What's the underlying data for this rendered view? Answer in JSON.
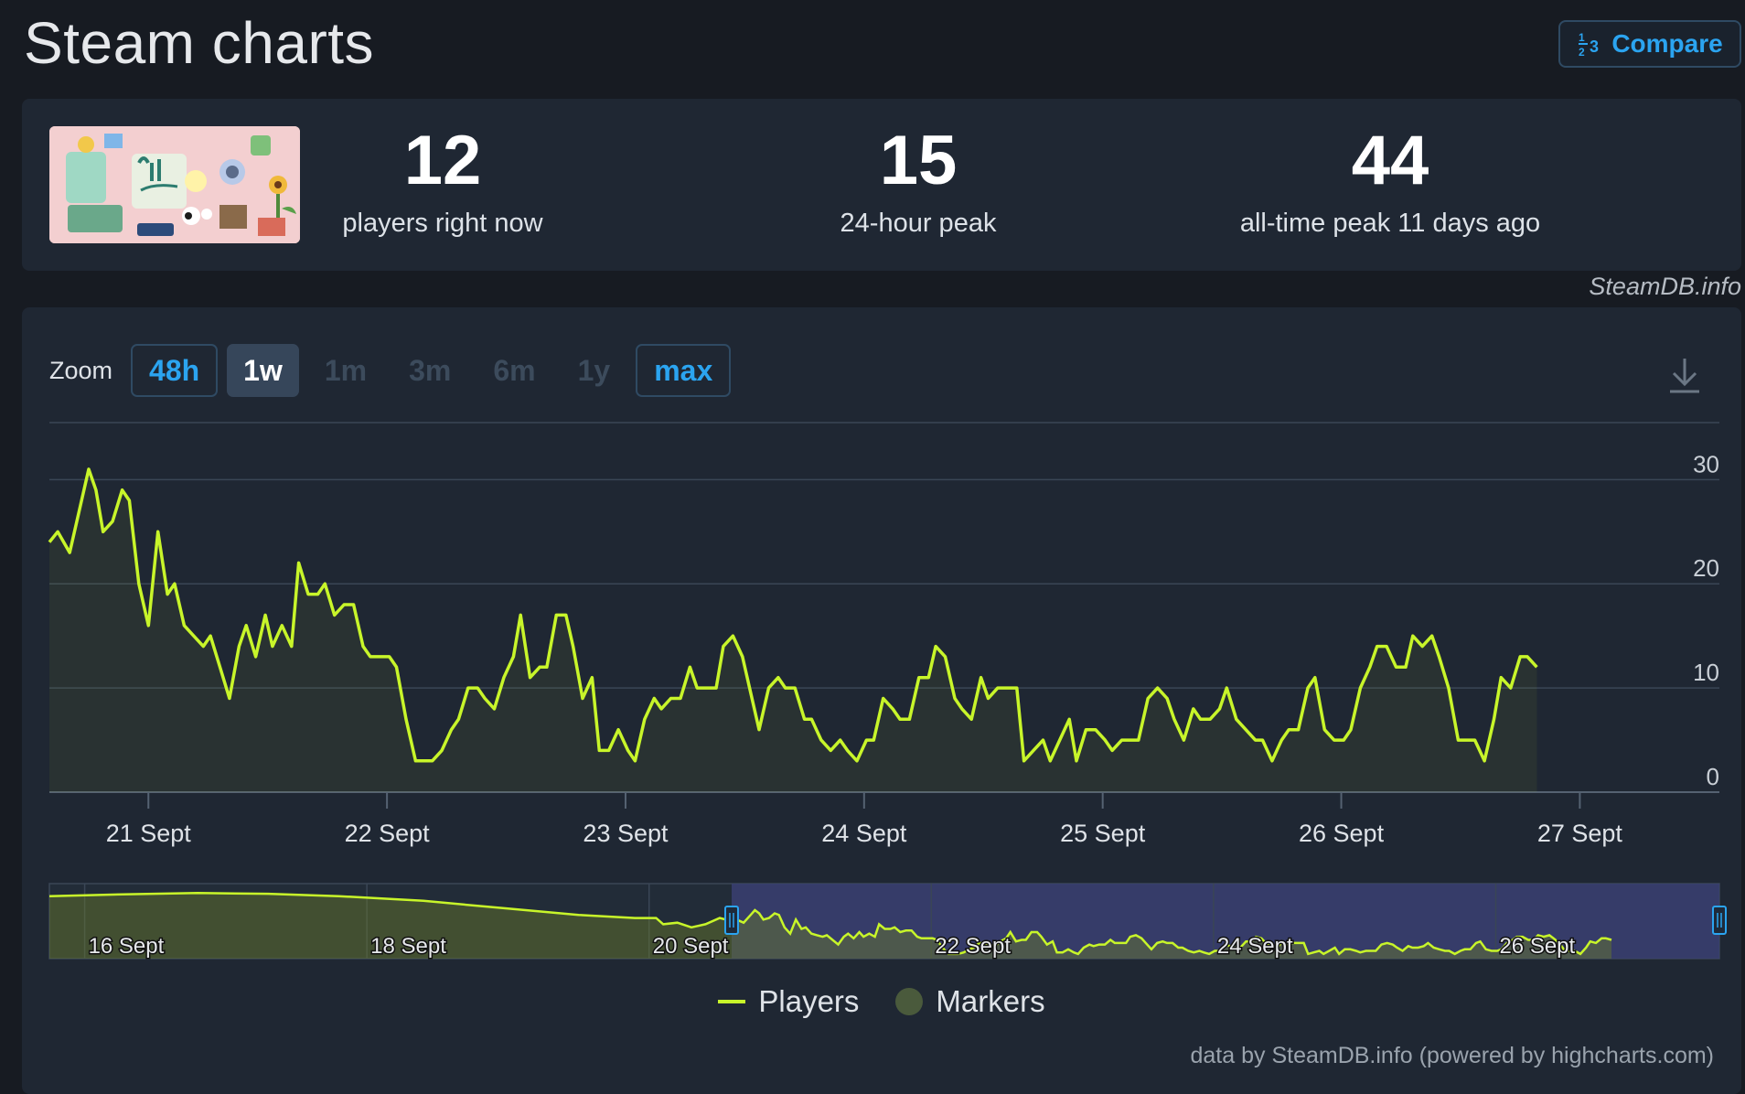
{
  "header": {
    "title": "Steam charts",
    "compare_label": "Compare"
  },
  "stats": {
    "current": {
      "value": "12",
      "label": "players right now"
    },
    "peak24": {
      "value": "15",
      "label": "24-hour peak"
    },
    "alltime": {
      "value": "44",
      "label": "all-time peak 11 days ago"
    }
  },
  "watermark": "SteamDB.info",
  "zoom": {
    "label": "Zoom",
    "options": [
      {
        "label": "48h",
        "state": "outlined"
      },
      {
        "label": "1w",
        "state": "active"
      },
      {
        "label": "1m",
        "state": "disabled"
      },
      {
        "label": "3m",
        "state": "disabled"
      },
      {
        "label": "6m",
        "state": "disabled"
      },
      {
        "label": "1y",
        "state": "disabled"
      },
      {
        "label": "max",
        "state": "outlined"
      }
    ]
  },
  "legend": {
    "players": "Players",
    "markers": "Markers"
  },
  "credits": "data by SteamDB.info (powered by highcharts.com)",
  "colors": {
    "line": "#c8f52a",
    "panel": "#1f2733",
    "navigator_selection": "#3a3f72"
  },
  "chart_data": {
    "type": "line",
    "ylim": [
      0,
      36
    ],
    "yticks": [
      0,
      10,
      20,
      30
    ],
    "grid": true,
    "xticks": [
      {
        "t": 21,
        "label": "21 Sept"
      },
      {
        "t": 22,
        "label": "22 Sept"
      },
      {
        "t": 23,
        "label": "23 Sept"
      },
      {
        "t": 24,
        "label": "24 Sept"
      },
      {
        "t": 25,
        "label": "25 Sept"
      },
      {
        "t": 26,
        "label": "26 Sept"
      },
      {
        "t": 27,
        "label": "27 Sept"
      }
    ],
    "xrange": [
      20.585,
      27.585
    ],
    "series": [
      {
        "name": "Players",
        "points": [
          [
            20.585,
            24
          ],
          [
            20.62,
            25
          ],
          [
            20.67,
            23
          ],
          [
            20.72,
            28
          ],
          [
            20.75,
            31
          ],
          [
            20.78,
            29
          ],
          [
            20.81,
            25
          ],
          [
            20.85,
            26
          ],
          [
            20.89,
            29
          ],
          [
            20.92,
            28
          ],
          [
            20.96,
            20
          ],
          [
            21.0,
            16
          ],
          [
            21.04,
            25
          ],
          [
            21.08,
            19
          ],
          [
            21.11,
            20
          ],
          [
            21.15,
            16
          ],
          [
            21.19,
            15
          ],
          [
            21.23,
            14
          ],
          [
            21.26,
            15
          ],
          [
            21.3,
            12
          ],
          [
            21.34,
            9
          ],
          [
            21.38,
            14
          ],
          [
            21.41,
            16
          ],
          [
            21.45,
            13
          ],
          [
            21.49,
            17
          ],
          [
            21.52,
            14
          ],
          [
            21.56,
            16
          ],
          [
            21.6,
            14
          ],
          [
            21.63,
            22
          ],
          [
            21.67,
            19
          ],
          [
            21.71,
            19
          ],
          [
            21.74,
            20
          ],
          [
            21.78,
            17
          ],
          [
            21.82,
            18
          ],
          [
            21.86,
            18
          ],
          [
            21.9,
            14
          ],
          [
            21.93,
            13
          ],
          [
            21.97,
            13
          ],
          [
            22.01,
            13
          ],
          [
            22.04,
            12
          ],
          [
            22.08,
            7
          ],
          [
            22.12,
            3
          ],
          [
            22.15,
            3
          ],
          [
            22.19,
            3
          ],
          [
            22.23,
            4
          ],
          [
            22.27,
            6
          ],
          [
            22.3,
            7
          ],
          [
            22.34,
            10
          ],
          [
            22.38,
            10
          ],
          [
            22.41,
            9
          ],
          [
            22.45,
            8
          ],
          [
            22.49,
            11
          ],
          [
            22.53,
            13
          ],
          [
            22.56,
            17
          ],
          [
            22.6,
            11
          ],
          [
            22.64,
            12
          ],
          [
            22.67,
            12
          ],
          [
            22.71,
            17
          ],
          [
            22.75,
            17
          ],
          [
            22.78,
            14
          ],
          [
            22.82,
            9
          ],
          [
            22.86,
            11
          ],
          [
            22.89,
            4
          ],
          [
            22.93,
            4
          ],
          [
            22.97,
            6
          ],
          [
            23.01,
            4
          ],
          [
            23.04,
            3
          ],
          [
            23.08,
            7
          ],
          [
            23.12,
            9
          ],
          [
            23.15,
            8
          ],
          [
            23.19,
            9
          ],
          [
            23.23,
            9
          ],
          [
            23.27,
            12
          ],
          [
            23.3,
            10
          ],
          [
            23.34,
            10
          ],
          [
            23.38,
            10
          ],
          [
            23.41,
            14
          ],
          [
            23.45,
            15
          ],
          [
            23.49,
            13
          ],
          [
            23.52,
            10
          ],
          [
            23.56,
            6
          ],
          [
            23.6,
            10
          ],
          [
            23.64,
            11
          ],
          [
            23.67,
            10
          ],
          [
            23.71,
            10
          ],
          [
            23.75,
            7
          ],
          [
            23.78,
            7
          ],
          [
            23.82,
            5
          ],
          [
            23.86,
            4
          ],
          [
            23.9,
            5
          ],
          [
            23.93,
            4
          ],
          [
            23.97,
            3
          ],
          [
            24.01,
            5
          ],
          [
            24.04,
            5
          ],
          [
            24.08,
            9
          ],
          [
            24.12,
            8
          ],
          [
            24.15,
            7
          ],
          [
            24.19,
            7
          ],
          [
            24.23,
            11
          ],
          [
            24.27,
            11
          ],
          [
            24.3,
            14
          ],
          [
            24.34,
            13
          ],
          [
            24.38,
            9
          ],
          [
            24.41,
            8
          ],
          [
            24.45,
            7
          ],
          [
            24.49,
            11
          ],
          [
            24.52,
            9
          ],
          [
            24.56,
            10
          ],
          [
            24.6,
            10
          ],
          [
            24.64,
            10
          ],
          [
            24.67,
            3
          ],
          [
            24.71,
            4
          ],
          [
            24.75,
            5
          ],
          [
            24.78,
            3
          ],
          [
            24.82,
            5
          ],
          [
            24.86,
            7
          ],
          [
            24.89,
            3
          ],
          [
            24.93,
            6
          ],
          [
            24.97,
            6
          ],
          [
            25.01,
            5
          ],
          [
            25.04,
            4
          ],
          [
            25.08,
            5
          ],
          [
            25.12,
            5
          ],
          [
            25.15,
            5
          ],
          [
            25.19,
            9
          ],
          [
            25.23,
            10
          ],
          [
            25.27,
            9
          ],
          [
            25.3,
            7
          ],
          [
            25.34,
            5
          ],
          [
            25.38,
            8
          ],
          [
            25.41,
            7
          ],
          [
            25.45,
            7
          ],
          [
            25.49,
            8
          ],
          [
            25.52,
            10
          ],
          [
            25.56,
            7
          ],
          [
            25.6,
            6
          ],
          [
            25.64,
            5
          ],
          [
            25.67,
            5
          ],
          [
            25.71,
            3
          ],
          [
            25.75,
            5
          ],
          [
            25.78,
            6
          ],
          [
            25.82,
            6
          ],
          [
            25.86,
            10
          ],
          [
            25.89,
            11
          ],
          [
            25.93,
            6
          ],
          [
            25.97,
            5
          ],
          [
            26.01,
            5
          ],
          [
            26.04,
            6
          ],
          [
            26.08,
            10
          ],
          [
            26.12,
            12
          ],
          [
            26.15,
            14
          ],
          [
            26.19,
            14
          ],
          [
            26.23,
            12
          ],
          [
            26.27,
            12
          ],
          [
            26.3,
            15
          ],
          [
            26.34,
            14
          ],
          [
            26.38,
            15
          ],
          [
            26.41,
            13
          ],
          [
            26.45,
            10
          ],
          [
            26.49,
            5
          ],
          [
            26.52,
            5
          ],
          [
            26.56,
            5
          ],
          [
            26.6,
            3
          ],
          [
            26.64,
            7
          ],
          [
            26.67,
            11
          ],
          [
            26.71,
            10
          ],
          [
            26.75,
            13
          ],
          [
            26.78,
            13
          ],
          [
            26.82,
            12
          ]
        ]
      }
    ],
    "navigator": {
      "xrange": [
        15.75,
        27.585
      ],
      "selection": [
        20.585,
        27.585
      ],
      "xticks": [
        {
          "t": 16,
          "label": "16 Sept"
        },
        {
          "t": 18,
          "label": "18 Sept"
        },
        {
          "t": 20,
          "label": "20 Sept"
        },
        {
          "t": 22,
          "label": "22 Sept"
        },
        {
          "t": 24,
          "label": "24 Sept"
        },
        {
          "t": 26,
          "label": "26 Sept"
        }
      ],
      "pre_points": [
        [
          15.75,
          40
        ],
        [
          16.2,
          41
        ],
        [
          16.8,
          42
        ],
        [
          17.3,
          41.5
        ],
        [
          17.8,
          40
        ],
        [
          18.4,
          37
        ],
        [
          19.0,
          32
        ],
        [
          19.5,
          28
        ],
        [
          19.9,
          26
        ],
        [
          20.05,
          26
        ],
        [
          20.1,
          22
        ],
        [
          20.2,
          23
        ],
        [
          20.3,
          20
        ],
        [
          20.4,
          22
        ],
        [
          20.5,
          26
        ]
      ]
    }
  }
}
